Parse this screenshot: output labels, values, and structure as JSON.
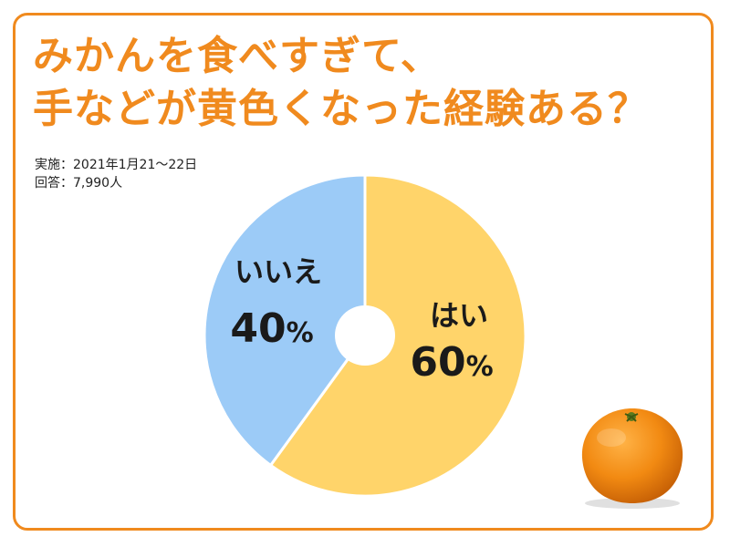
{
  "title_lines": [
    "みかんを食べすぎて、",
    "手などが黄色くなった経験ある？"
  ],
  "survey": {
    "date": "実施：2021年1月21～22日",
    "respondents": "回答：7,990人"
  },
  "colors": {
    "frame": "#f08a1e",
    "title": "#f08a1e",
    "yes": "#ffd46a",
    "no": "#9ccbf7",
    "orange_fruit": "#f28a12"
  },
  "icons": {
    "fruit": "mandarin-orange"
  },
  "chart_data": {
    "type": "pie",
    "title": "みかんを食べすぎて、手などが黄色くなった経験ある？",
    "slices": [
      {
        "label": "はい",
        "value": 60,
        "value_text": "60",
        "unit": "%",
        "color": "#ffd46a"
      },
      {
        "label": "いいえ",
        "value": 40,
        "value_text": "40",
        "unit": "%",
        "color": "#9ccbf7"
      }
    ],
    "start": "12 o'clock",
    "direction": "clockwise",
    "donut_hole": true,
    "legend": "none"
  }
}
